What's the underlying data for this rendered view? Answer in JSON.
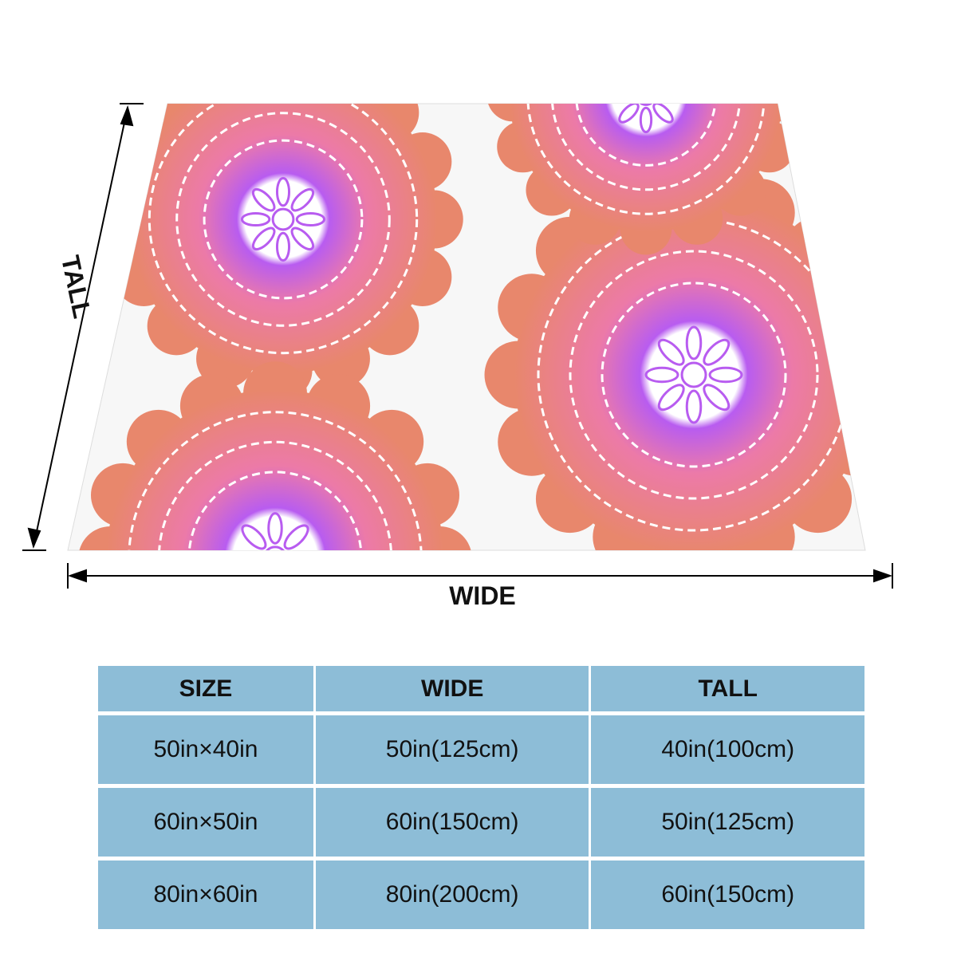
{
  "diagram": {
    "tall_label": "TALL",
    "wide_label": "WIDE"
  },
  "table": {
    "header": [
      "SIZE",
      "WIDE",
      "TALL"
    ],
    "rows": [
      [
        "50in×40in",
        "50in(125cm)",
        "40in(100cm)"
      ],
      [
        "60in×50in",
        "60in(150cm)",
        "50in(125cm)"
      ],
      [
        "80in×60in",
        "80in(200cm)",
        "60in(150cm)"
      ]
    ]
  }
}
